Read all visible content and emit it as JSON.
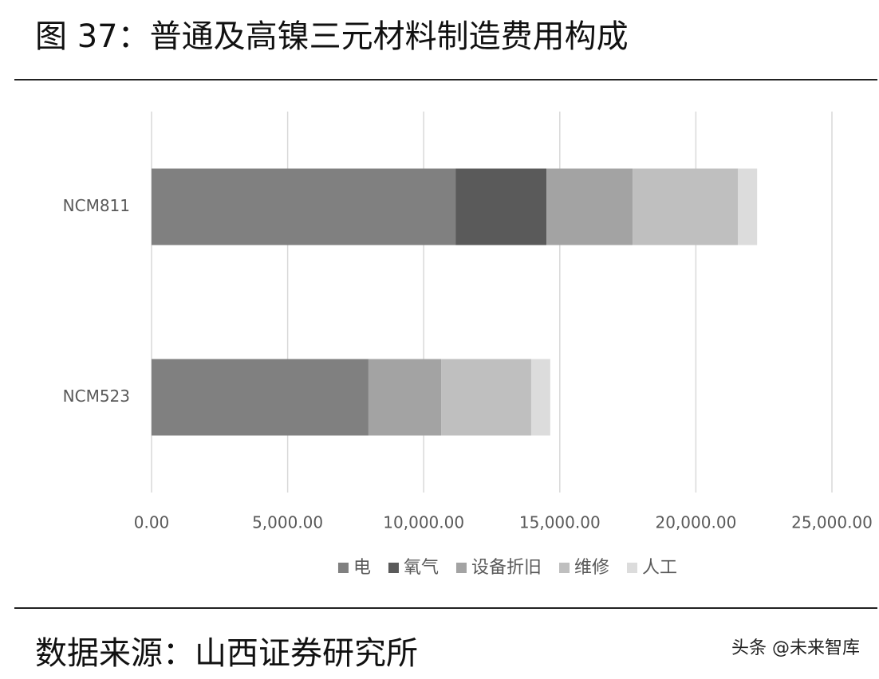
{
  "chart_data": {
    "type": "barh_stacked",
    "title": "图 37：普通及高镍三元材料制造费用构成",
    "source": "数据来源：山西证券研究所",
    "watermark": "头条 @未来智库",
    "categories": [
      "NCM811",
      "NCM523"
    ],
    "series": [
      {
        "name": "电",
        "color": "#808080",
        "values": [
          11170,
          7970
        ]
      },
      {
        "name": "氧气",
        "color": "#5a5a5a",
        "values": [
          3340,
          0
        ]
      },
      {
        "name": "设备折旧",
        "color": "#a3a3a3",
        "values": [
          3170,
          2670
        ]
      },
      {
        "name": "维修",
        "color": "#bfbfbf",
        "values": [
          3870,
          3310
        ]
      },
      {
        "name": "人工",
        "color": "#dcdcdc",
        "values": [
          700,
          700
        ]
      }
    ],
    "xlim": [
      0,
      25000
    ],
    "xticks": [
      {
        "value": 0,
        "label": "0.00"
      },
      {
        "value": 5000,
        "label": "5,000.00"
      },
      {
        "value": 10000,
        "label": "10,000.00"
      },
      {
        "value": 15000,
        "label": "15,000.00"
      },
      {
        "value": 20000,
        "label": "20,000.00"
      },
      {
        "value": 25000,
        "label": "25,000.00"
      }
    ],
    "grid": true,
    "legend": "bottom"
  }
}
